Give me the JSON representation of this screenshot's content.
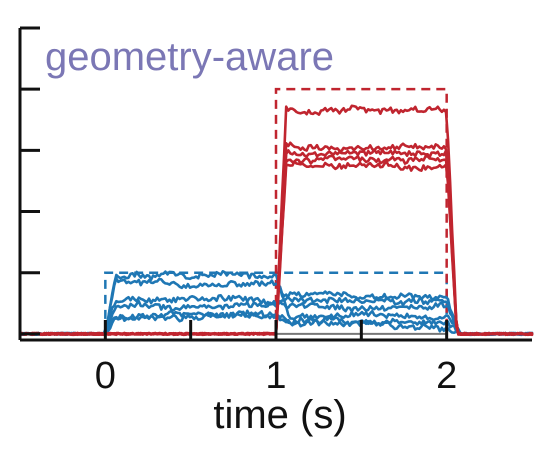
{
  "chart_data": {
    "type": "line",
    "title": "geometry-aware",
    "title_color": "#7b77b5",
    "xlabel": "time (s)",
    "ylabel": "",
    "xlim": [
      -0.5,
      2.5
    ],
    "ylim": [
      -0.1,
      5.0
    ],
    "x_ticks": [
      0,
      0.5,
      1,
      1.5,
      2
    ],
    "x_tick_labels": [
      {
        "value": 0,
        "label": "0"
      },
      {
        "value": 1,
        "label": "1"
      },
      {
        "value": 2,
        "label": "2"
      }
    ],
    "y_ticks": [
      0,
      1,
      2,
      3,
      4,
      5
    ],
    "grid": false,
    "colors": {
      "blue": "#1f77b4",
      "red": "#c0252f",
      "baseline": "#777777"
    },
    "targets": [
      {
        "color": "blue",
        "x_start": 0,
        "x_end": 2,
        "level": 1.0
      },
      {
        "color": "red",
        "x_start": 1,
        "x_end": 2,
        "level": 4.0
      }
    ],
    "series": [
      {
        "color": "blue",
        "rise": 0.0,
        "fall": 1.0,
        "level": 0.95,
        "post": 0.3
      },
      {
        "color": "blue",
        "rise": 0.0,
        "fall": 1.0,
        "level": 0.82,
        "post": 0.55
      },
      {
        "color": "blue",
        "rise": 0.0,
        "fall": 1.0,
        "level": 0.55,
        "post": 0.45
      },
      {
        "color": "blue",
        "rise": 0.0,
        "fall": 1.0,
        "level": 0.45,
        "post": 0.62
      },
      {
        "color": "blue",
        "rise": 0.0,
        "fall": 1.0,
        "level": 0.3,
        "post": 0.2
      },
      {
        "color": "blue",
        "rise": 0.0,
        "fall": 1.0,
        "level": 0.28,
        "post": 0.15
      },
      {
        "color": "red",
        "rise": 1.0,
        "fall": 2.0,
        "level": 3.65
      },
      {
        "color": "red",
        "rise": 1.0,
        "fall": 2.0,
        "level": 3.05
      },
      {
        "color": "red",
        "rise": 1.0,
        "fall": 2.0,
        "level": 2.95
      },
      {
        "color": "red",
        "rise": 1.0,
        "fall": 2.0,
        "level": 2.85
      },
      {
        "color": "red",
        "rise": 1.0,
        "fall": 2.0,
        "level": 2.75
      }
    ]
  }
}
